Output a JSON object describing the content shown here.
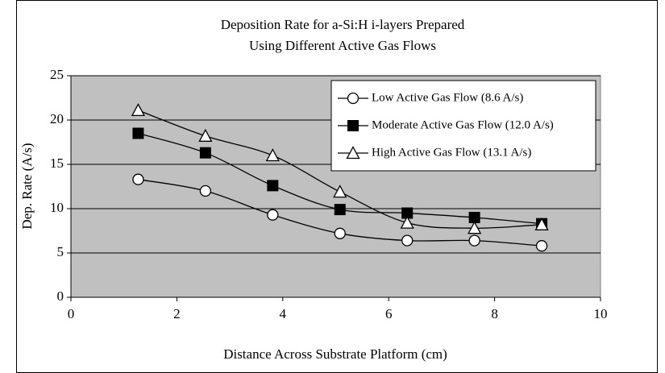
{
  "chart_data": {
    "type": "line",
    "title": [
      "Deposition Rate for a-Si:H i-layers Prepared",
      "Using Different Active Gas Flows"
    ],
    "x_label": "Distance Across Substrate Platform (cm)",
    "y_label": "Dep. Rate (A/s)",
    "x": [
      1.27,
      2.54,
      3.81,
      5.08,
      6.35,
      7.62,
      8.89
    ],
    "series": [
      {
        "name": "Low Active Gas Flow (8.6 A/s)",
        "color": "#000000",
        "marker": "circle",
        "values": [
          13.3,
          12.0,
          9.3,
          7.2,
          6.4,
          6.4,
          5.8
        ]
      },
      {
        "name": "Moderate Active Gas Flow (12.0 A/s)",
        "color": "#000000",
        "marker": "square",
        "values": [
          18.5,
          16.3,
          12.6,
          9.9,
          9.5,
          9.0,
          8.3
        ]
      },
      {
        "name": "High Active Gas Flow (13.1 A/s)",
        "color": "#000000",
        "marker": "triangle",
        "values": [
          21.1,
          18.2,
          16.0,
          11.9,
          8.4,
          7.8,
          8.2
        ]
      }
    ],
    "smooth": true,
    "xlim": [
      0,
      10
    ],
    "xticks": [
      0,
      2,
      4,
      6,
      8,
      10
    ],
    "ylim": [
      0,
      25
    ],
    "yticks": [
      0,
      5,
      10,
      15,
      20,
      25
    ],
    "grid": true,
    "legend": "upper right",
    "plot_background": "#c0c0c0"
  }
}
